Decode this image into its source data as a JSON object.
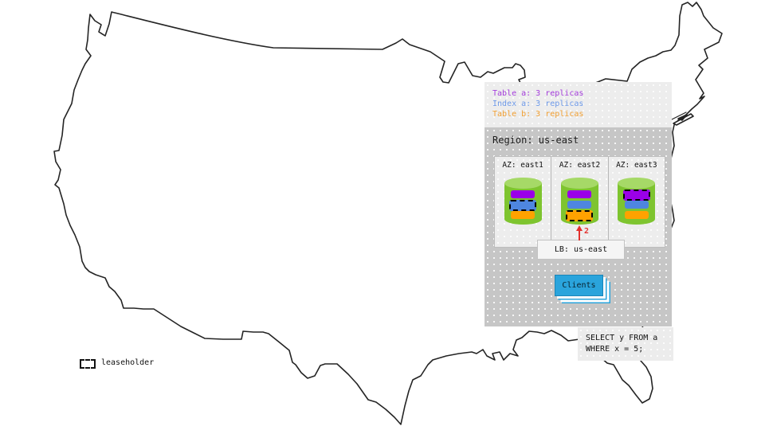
{
  "replica_legend": {
    "items": [
      {
        "label": "Table a: 3 replicas",
        "color": "#a43ddb"
      },
      {
        "label": "Index a: 3 replicas",
        "color": "#6d99e8"
      },
      {
        "label": "Table b: 3 replicas",
        "color": "#f2a134"
      }
    ]
  },
  "region": {
    "title": "Region: us-east",
    "azs": [
      {
        "label": "AZ: east1",
        "replicas": [
          {
            "name": "table-a",
            "color": "#9a00e8",
            "leaseholder": false
          },
          {
            "name": "index-a",
            "color": "#4e86e0",
            "leaseholder": true
          },
          {
            "name": "table-b",
            "color": "#ffa200",
            "leaseholder": false
          }
        ]
      },
      {
        "label": "AZ: east2",
        "replicas": [
          {
            "name": "table-a",
            "color": "#9a00e8",
            "leaseholder": false
          },
          {
            "name": "index-a",
            "color": "#4e86e0",
            "leaseholder": false
          },
          {
            "name": "table-b",
            "color": "#ffa200",
            "leaseholder": true
          }
        ]
      },
      {
        "label": "AZ: east3",
        "replicas": [
          {
            "name": "table-a",
            "color": "#9a00e8",
            "leaseholder": true
          },
          {
            "name": "index-a",
            "color": "#4e86e0",
            "leaseholder": false
          },
          {
            "name": "table-b",
            "color": "#ffa200",
            "leaseholder": false
          }
        ]
      }
    ],
    "load_balancer": {
      "label": "LB: us-east"
    },
    "clients": {
      "label": "Clients"
    },
    "arrow": {
      "label": "2",
      "color": "#e3312d"
    }
  },
  "query_box": {
    "line1": "SELECT y FROM a",
    "line2": "WHERE x = 5;"
  },
  "map_legend": {
    "label": "leaseholder"
  },
  "colors": {
    "cylinder_body": "#7ec42f",
    "cylinder_top": "#a6d967",
    "clients_blue": "#2aa4dc",
    "panel_light": "#ededed",
    "panel_dark": "#c6c6c6",
    "map_stroke": "#242424"
  }
}
